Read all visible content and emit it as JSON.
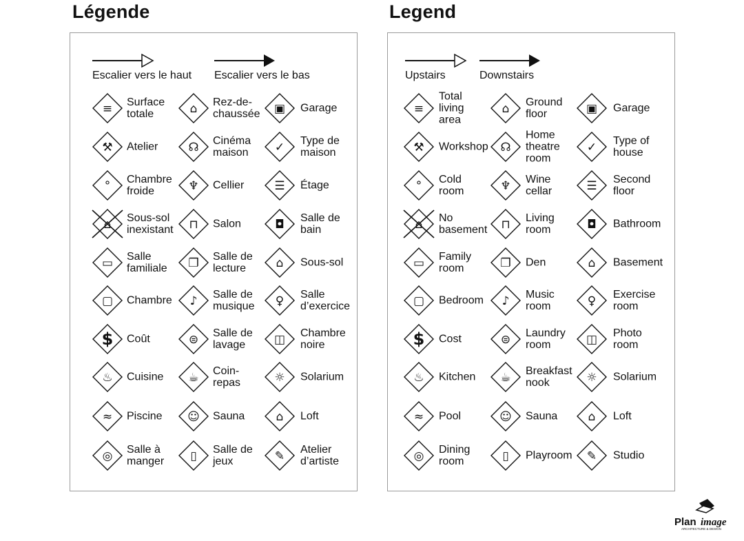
{
  "french": {
    "title": "Légende",
    "stairs_up": "Escalier vers le haut",
    "stairs_down": "Escalier vers le bas",
    "items": [
      {
        "label": "Surface\ntotale",
        "icon": "total-area-icon"
      },
      {
        "label": "Rez-de-\nchaussée",
        "icon": "ground-floor-icon"
      },
      {
        "label": "Garage",
        "icon": "garage-icon"
      },
      {
        "label": "Atelier",
        "icon": "hammer-icon"
      },
      {
        "label": "Cinéma\nmaison",
        "icon": "home-theatre-icon"
      },
      {
        "label": "Type de\nmaison",
        "icon": "house-type-icon"
      },
      {
        "label": "Chambre\nfroide",
        "icon": "thermometer-icon"
      },
      {
        "label": "Cellier",
        "icon": "wine-icon"
      },
      {
        "label": "Étage",
        "icon": "second-floor-icon"
      },
      {
        "label": "Sous-sol\ninexistant",
        "icon": "no-basement-icon"
      },
      {
        "label": "Salon",
        "icon": "sofa-icon"
      },
      {
        "label": "Salle de\nbain",
        "icon": "toilet-icon"
      },
      {
        "label": "Salle\nfamiliale",
        "icon": "tv-icon"
      },
      {
        "label": "Salle de\nlecture",
        "icon": "book-icon"
      },
      {
        "label": "Sous-sol",
        "icon": "basement-icon"
      },
      {
        "label": "Chambre",
        "icon": "bed-icon"
      },
      {
        "label": "Salle de\nmusique",
        "icon": "music-note-icon"
      },
      {
        "label": "Salle\nd’exercice",
        "icon": "dumbbell-icon"
      },
      {
        "label": "Coût",
        "icon": "dollar-icon"
      },
      {
        "label": "Salle de\nlavage",
        "icon": "laundry-icon"
      },
      {
        "label": "Chambre\nnoire",
        "icon": "camera-icon"
      },
      {
        "label": "Cuisine",
        "icon": "pot-icon"
      },
      {
        "label": "Coin-\nrepas",
        "icon": "coffee-icon"
      },
      {
        "label": "Solarium",
        "icon": "sun-icon"
      },
      {
        "label": "Piscine",
        "icon": "swimmer-icon"
      },
      {
        "label": "Sauna",
        "icon": "sauna-icon"
      },
      {
        "label": "Loft",
        "icon": "loft-icon"
      },
      {
        "label": "Salle à\nmanger",
        "icon": "dining-icon"
      },
      {
        "label": "Salle de\njeux",
        "icon": "playroom-icon"
      },
      {
        "label": "Atelier\nd’artiste",
        "icon": "palette-icon"
      }
    ]
  },
  "english": {
    "title": "Legend",
    "stairs_up": "Upstairs",
    "stairs_down": "Downstairs",
    "items": [
      {
        "label": "Total\nliving\narea",
        "icon": "total-area-icon"
      },
      {
        "label": "Ground\nfloor",
        "icon": "ground-floor-icon"
      },
      {
        "label": "Garage",
        "icon": "garage-icon"
      },
      {
        "label": "Workshop",
        "icon": "hammer-icon"
      },
      {
        "label": "Home\ntheatre\nroom",
        "icon": "home-theatre-icon"
      },
      {
        "label": "Type of\nhouse",
        "icon": "house-type-icon"
      },
      {
        "label": "Cold\nroom",
        "icon": "thermometer-icon"
      },
      {
        "label": "Wine\ncellar",
        "icon": "wine-icon"
      },
      {
        "label": "Second\nfloor",
        "icon": "second-floor-icon"
      },
      {
        "label": "No\nbasement",
        "icon": "no-basement-icon"
      },
      {
        "label": "Living\nroom",
        "icon": "sofa-icon"
      },
      {
        "label": "Bathroom",
        "icon": "toilet-icon"
      },
      {
        "label": "Family\nroom",
        "icon": "tv-icon"
      },
      {
        "label": "Den",
        "icon": "book-icon"
      },
      {
        "label": "Basement",
        "icon": "basement-icon"
      },
      {
        "label": "Bedroom",
        "icon": "bed-icon"
      },
      {
        "label": "Music\nroom",
        "icon": "music-note-icon"
      },
      {
        "label": "Exercise\nroom",
        "icon": "dumbbell-icon"
      },
      {
        "label": "Cost",
        "icon": "dollar-icon"
      },
      {
        "label": "Laundry\nroom",
        "icon": "laundry-icon"
      },
      {
        "label": "Photo\nroom",
        "icon": "camera-icon"
      },
      {
        "label": "Kitchen",
        "icon": "pot-icon"
      },
      {
        "label": "Breakfast\nnook",
        "icon": "coffee-icon"
      },
      {
        "label": "Solarium",
        "icon": "sun-icon"
      },
      {
        "label": "Pool",
        "icon": "swimmer-icon"
      },
      {
        "label": "Sauna",
        "icon": "sauna-icon"
      },
      {
        "label": "Loft",
        "icon": "loft-icon"
      },
      {
        "label": "Dining\nroom",
        "icon": "dining-icon"
      },
      {
        "label": "Playroom",
        "icon": "playroom-icon"
      },
      {
        "label": "Studio",
        "icon": "palette-icon"
      }
    ]
  },
  "logo": {
    "brand": "PlanImage",
    "tagline": "ARCHITECTURE & DESIGN"
  }
}
